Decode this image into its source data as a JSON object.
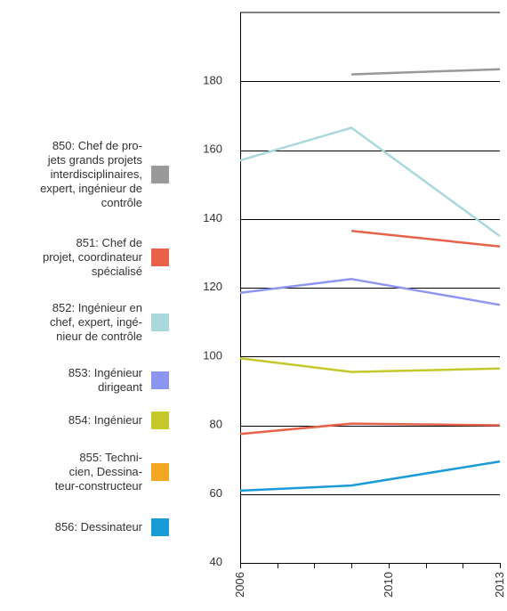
{
  "chart_data": {
    "type": "line",
    "title": "",
    "xlabel": "",
    "ylabel": "",
    "x_ticks": [
      2006,
      2010,
      2013
    ],
    "xlim": [
      2006,
      2013
    ],
    "y_ticks": [
      40,
      60,
      80,
      100,
      120,
      140,
      160,
      180
    ],
    "ylim": [
      40,
      200
    ],
    "grid": "horizontal",
    "legend_position": "left",
    "series": [
      {
        "name": "850: Chef de pro-\njets grands projets\ninterdisciplinaires,\nexpert, ingénieur de\ncontrôle",
        "color": "#999999",
        "x": [
          2009,
          2013
        ],
        "values": [
          182,
          183.5
        ]
      },
      {
        "name": "851: Chef de\nprojet, coordinateur\nspécialisé",
        "color": "#e8624a",
        "x": [
          2009,
          2013
        ],
        "values": [
          136.5,
          132
        ]
      },
      {
        "name": "852: Ingénieur en\nchef, expert, ingé-\nnieur de contrôle",
        "color": "#a8d8dc",
        "x": [
          2006,
          2009,
          2013
        ],
        "values": [
          157,
          166.5,
          135
        ]
      },
      {
        "name": "853: Ingénieur\ndirigeant",
        "color": "#8c96f2",
        "x": [
          2006,
          2009,
          2013
        ],
        "values": [
          118.5,
          122.5,
          115
        ]
      },
      {
        "name": "854: Ingénieur",
        "color": "#c5c82a",
        "x": [
          2006,
          2009,
          2013
        ],
        "values": [
          99.5,
          95.5,
          96.5
        ]
      },
      {
        "name": "855: Techni-\ncien, Dessina-\nteur-constructeur",
        "color": "#f5a623",
        "x": [],
        "values": []
      },
      {
        "name": "856: Dessinateur",
        "color": "#1a9bd7",
        "x": [
          2006,
          2009,
          2013
        ],
        "values": [
          61,
          62.5,
          69.5
        ]
      }
    ],
    "extra_lines": [
      {
        "color": "#e8624a",
        "x": [
          2006,
          2009,
          2013
        ],
        "values": [
          77.5,
          80.5,
          80
        ]
      }
    ]
  }
}
